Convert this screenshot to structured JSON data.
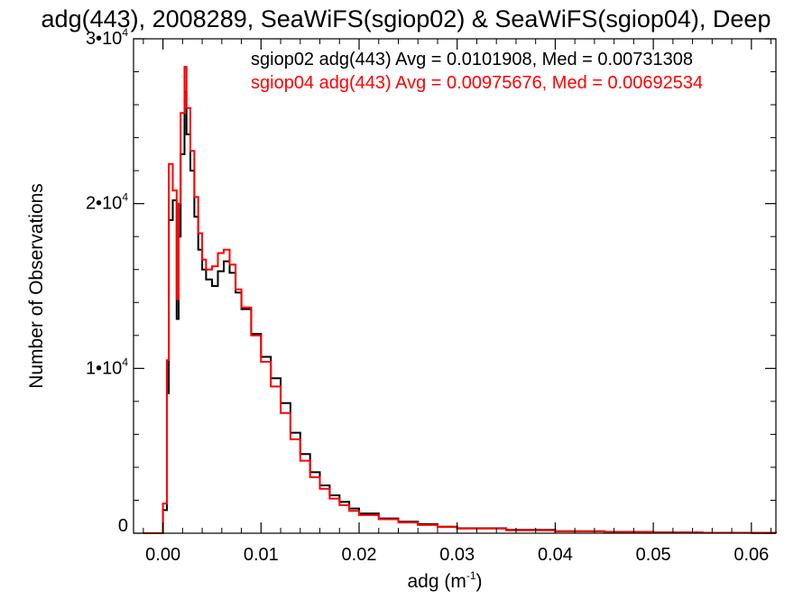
{
  "colors": {
    "background": "#ffffff",
    "axis": "#000000",
    "series_sgiop02": "#000000",
    "series_sgiop04": "#ff0000"
  },
  "chart_data": {
    "type": "line",
    "style": "step-histogram",
    "title": "adg(443), 2008289, SeaWiFS(sgiop02) & SeaWiFS(sgiop04), Deep",
    "xlabel": "adg (m",
    "xlabel_sup": "-1",
    "xlabel_tail": ")",
    "ylabel": "Number of Observations",
    "xlim": [
      -0.003,
      0.0625
    ],
    "ylim": [
      0,
      30000
    ],
    "grid": false,
    "x_ticks": [
      {
        "value": 0.0,
        "label": "0.00"
      },
      {
        "value": 0.01,
        "label": "0.01"
      },
      {
        "value": 0.02,
        "label": "0.02"
      },
      {
        "value": 0.03,
        "label": "0.03"
      },
      {
        "value": 0.04,
        "label": "0.04"
      },
      {
        "value": 0.05,
        "label": "0.05"
      },
      {
        "value": 0.06,
        "label": "0.06"
      }
    ],
    "x_minor_step": 0.002,
    "y_ticks": [
      {
        "value": 0,
        "label": "0",
        "exp": ""
      },
      {
        "value": 10000,
        "label": "1•10",
        "exp": "4"
      },
      {
        "value": 20000,
        "label": "2•10",
        "exp": "4"
      },
      {
        "value": 30000,
        "label": "3•10",
        "exp": "4"
      }
    ],
    "y_minor_step": 2000,
    "annotations": [
      {
        "text": "sgiop02 adg(443) Avg = 0.0101908, Med = 0.00731308",
        "color": "#000000"
      },
      {
        "text": "sgiop04 adg(443) Avg = 0.00975676, Med = 0.00692534",
        "color": "#ff0000"
      }
    ],
    "series": [
      {
        "name": "sgiop02",
        "color": "#000000",
        "x": [
          -0.002,
          0.0,
          0.0004,
          0.0006,
          0.001,
          0.0014,
          0.0016,
          0.0018,
          0.0022,
          0.0024,
          0.0028,
          0.0032,
          0.0036,
          0.004,
          0.0044,
          0.005,
          0.0056,
          0.0062,
          0.0068,
          0.0074,
          0.008,
          0.009,
          0.01,
          0.011,
          0.012,
          0.013,
          0.014,
          0.015,
          0.016,
          0.017,
          0.018,
          0.019,
          0.02,
          0.022,
          0.024,
          0.026,
          0.028,
          0.03,
          0.035,
          0.04,
          0.045,
          0.05,
          0.055,
          0.06,
          0.0625
        ],
        "y": [
          0,
          1400,
          8500,
          19000,
          20200,
          13000,
          18000,
          23000,
          26800,
          24200,
          22000,
          19200,
          17200,
          16000,
          15400,
          15000,
          15900,
          16500,
          15800,
          14600,
          13600,
          12100,
          10700,
          9400,
          7900,
          6100,
          4800,
          3700,
          2900,
          2300,
          1900,
          1500,
          1200,
          900,
          700,
          550,
          400,
          300,
          200,
          120,
          80,
          50,
          30,
          20,
          10
        ]
      },
      {
        "name": "sgiop04",
        "color": "#ff0000",
        "x": [
          -0.002,
          0.0,
          0.0004,
          0.0006,
          0.001,
          0.0014,
          0.0016,
          0.0018,
          0.0022,
          0.0024,
          0.0028,
          0.0032,
          0.0036,
          0.004,
          0.0044,
          0.005,
          0.0056,
          0.0062,
          0.0068,
          0.0074,
          0.008,
          0.009,
          0.01,
          0.011,
          0.012,
          0.013,
          0.014,
          0.015,
          0.016,
          0.017,
          0.018,
          0.019,
          0.02,
          0.022,
          0.024,
          0.026,
          0.028,
          0.03,
          0.035,
          0.04,
          0.045,
          0.05,
          0.055,
          0.06,
          0.0625
        ],
        "y": [
          0,
          1800,
          10500,
          22400,
          20800,
          14200,
          20000,
          25500,
          28300,
          25800,
          23200,
          20400,
          18200,
          16600,
          16000,
          16200,
          17000,
          17200,
          16300,
          14800,
          13700,
          12000,
          10400,
          8900,
          7300,
          5700,
          4400,
          3400,
          2700,
          2100,
          1700,
          1350,
          1100,
          850,
          650,
          500,
          380,
          280,
          180,
          110,
          70,
          45,
          28,
          18,
          8
        ]
      }
    ]
  }
}
